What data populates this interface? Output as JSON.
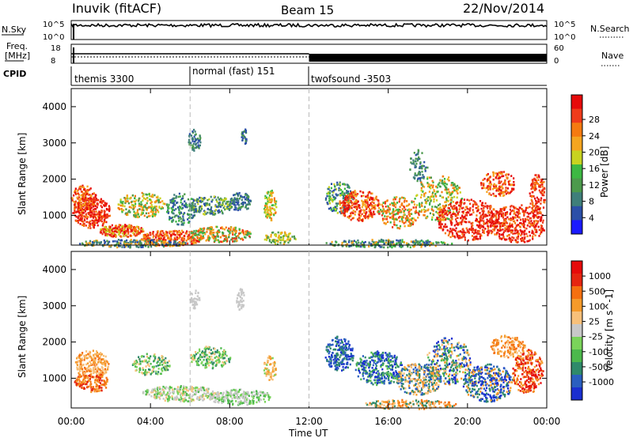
{
  "header": {
    "title": "Inuvik (fitACF)",
    "beam": "Beam 15",
    "date": "22/Nov/2014"
  },
  "left_labels": {
    "nsky": "N.Sky",
    "freq": "Freq.",
    "mhz": "[MHz]",
    "cpid": "CPID"
  },
  "right_labels": {
    "nsearch": "N.Search",
    "nave": "Nave"
  },
  "nsky_ticks": {
    "top": "10^5",
    "bottom": "10^0"
  },
  "freq_ticks": {
    "top": "18",
    "bottom": "8"
  },
  "nave_ticks": {
    "top": "60",
    "bottom": "0"
  },
  "cpid_segments": [
    {
      "label": "themis 3300",
      "start": "00:00",
      "end": "06:00"
    },
    {
      "label": "normal (fast) 151",
      "start": "06:00",
      "end": "12:00"
    },
    {
      "label": "twofsound -3503",
      "start": "12:00",
      "end": "24:00"
    }
  ],
  "x_axis": {
    "title": "Time UT",
    "ticks": [
      "00:00",
      "04:00",
      "08:00",
      "12:00",
      "16:00",
      "20:00",
      "00:00"
    ]
  },
  "chart_data": [
    {
      "type": "heatmap",
      "name": "power",
      "ylabel": "Slant Range [km]",
      "yticks": [
        "1000",
        "2000",
        "3000",
        "4000"
      ],
      "ylim": [
        180,
        4500
      ],
      "xlim": [
        "00:00",
        "24:00"
      ],
      "colorbar_label": "Power [dB]",
      "colorbar_ticks": [
        "4",
        "8",
        "12",
        "16",
        "20",
        "24",
        "28"
      ],
      "colors": [
        "#1a1aff",
        "#2b4fa8",
        "#3f7f7a",
        "#4c9a4c",
        "#3db843",
        "#c8d320",
        "#f5a51f",
        "#f57a10",
        "#ef3b1a",
        "#e60a0a"
      ]
    },
    {
      "type": "heatmap",
      "name": "velocity",
      "ylabel": "Slant Range [km]",
      "yticks": [
        "1000",
        "2000",
        "3000",
        "4000"
      ],
      "ylim": [
        180,
        4500
      ],
      "xlim": [
        "00:00",
        "24:00"
      ],
      "colorbar_label": "Velocity  [m s^-1]",
      "colorbar_ticks": [
        "1000",
        "500",
        "100",
        "25",
        "-25",
        "-100",
        "-500",
        "-1000"
      ],
      "colors": [
        "#1a2fd0",
        "#2a5fbf",
        "#2f8a6a",
        "#4cb84c",
        "#7ad35a",
        "#c8c8c8",
        "#f7c07a",
        "#f59a2a",
        "#f57010",
        "#e52510",
        "#e60a0a"
      ]
    }
  ]
}
